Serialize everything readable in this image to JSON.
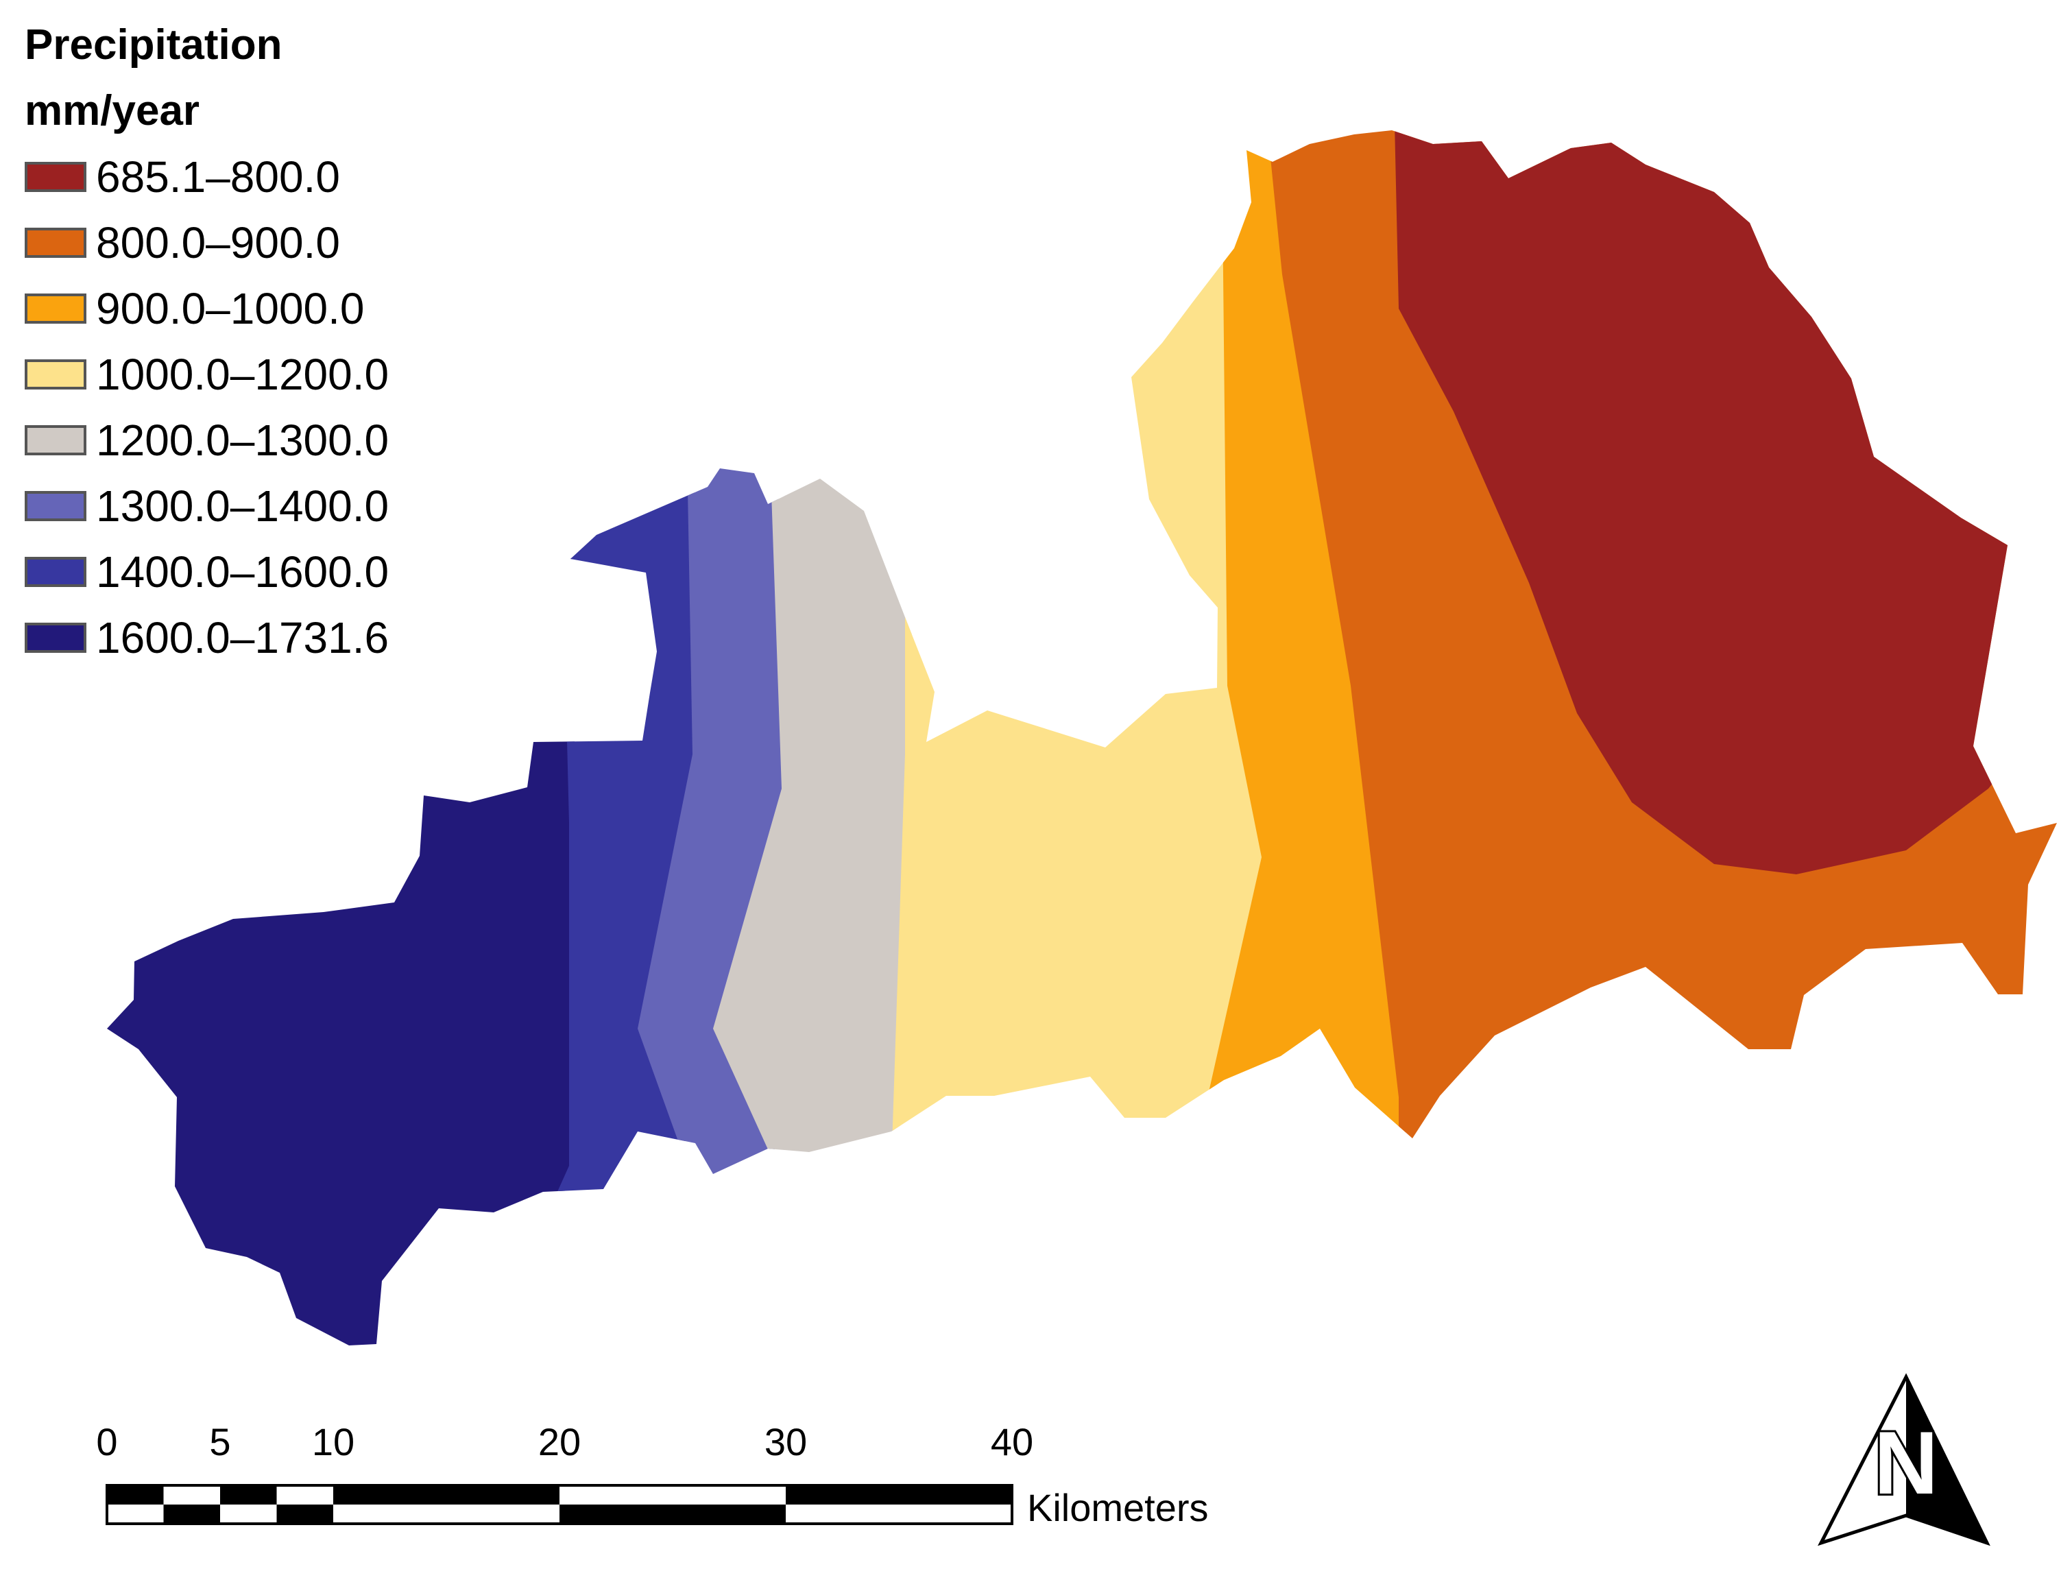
{
  "legend": {
    "title_line1": "Precipitation",
    "title_line2": "mm/year",
    "classes": [
      {
        "label": "685.1–800.0",
        "color": "#9b2121"
      },
      {
        "label": "800.0–900.0",
        "color": "#db6511"
      },
      {
        "label": "900.0–1000.0",
        "color": "#faa30e"
      },
      {
        "label": "1000.0–1200.0",
        "color": "#fde28b"
      },
      {
        "label": "1200.0–1300.0",
        "color": "#d0cac5"
      },
      {
        "label": "1300.0–1400.0",
        "color": "#6565b8"
      },
      {
        "label": "1400.0–1600.0",
        "color": "#3737a0"
      },
      {
        "label": "1600.0–1731.6",
        "color": "#22197a"
      }
    ]
  },
  "scale_bar": {
    "ticks": [
      "0",
      "5",
      "10",
      "20",
      "30",
      "40"
    ],
    "unit": "Kilometers"
  },
  "north_arrow": {
    "letter": "N",
    "icon": "north-arrow-icon"
  }
}
